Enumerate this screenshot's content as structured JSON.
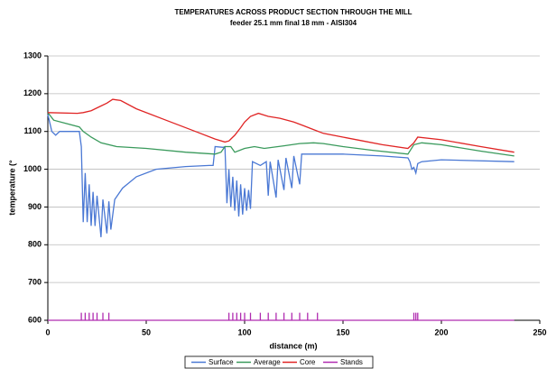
{
  "chart_data": {
    "type": "line",
    "title": "TEMPERATURES ACROSS PRODUCT SECTION THROUGH THE MILL",
    "subtitle": "feeder 25.1 mm final 18 mm - AISI304",
    "x_label": "distance (m)",
    "y_label": "temperature (°",
    "xlim": [
      0,
      250
    ],
    "xticks": [
      0,
      50,
      100,
      150,
      200,
      250
    ],
    "ylim": [
      600,
      1300
    ],
    "yticks": [
      600,
      700,
      800,
      900,
      1000,
      1100,
      1200,
      1300
    ],
    "grid": true,
    "legend": "bottom",
    "series": [
      {
        "name": "Surface",
        "color": "#4a78d4",
        "x": [
          0,
          2,
          4,
          6,
          16,
          17,
          18,
          19,
          20,
          21,
          22,
          23,
          24,
          25,
          27,
          28,
          30,
          31,
          32,
          34,
          38,
          45,
          55,
          70,
          82,
          84,
          85,
          89,
          90,
          91,
          92,
          93,
          94,
          95,
          96,
          97,
          98,
          99,
          100,
          101,
          102,
          103,
          104,
          108,
          111,
          112,
          113,
          116,
          117,
          120,
          121,
          124,
          125,
          128,
          129,
          135,
          150,
          170,
          183,
          184,
          185,
          186,
          187,
          188,
          190,
          200,
          237
        ],
        "values": [
          1145,
          1100,
          1090,
          1100,
          1100,
          1060,
          860,
          990,
          860,
          960,
          850,
          940,
          850,
          930,
          820,
          920,
          830,
          915,
          840,
          920,
          950,
          980,
          1000,
          1007,
          1010,
          1010,
          1060,
          1058,
          1060,
          910,
          1000,
          900,
          980,
          890,
          970,
          875,
          960,
          880,
          950,
          890,
          945,
          895,
          1020,
          1010,
          1020,
          930,
          1020,
          925,
          1025,
          945,
          1030,
          950,
          1035,
          960,
          1040,
          1040,
          1040,
          1035,
          1030,
          1020,
          1000,
          1005,
          990,
          1015,
          1020,
          1025,
          1020
        ]
      },
      {
        "name": "Average",
        "color": "#3a9a5c",
        "x": [
          0,
          3,
          10,
          16,
          18,
          22,
          27,
          35,
          50,
          70,
          85,
          88,
          90,
          93,
          95,
          100,
          105,
          110,
          120,
          128,
          135,
          140,
          150,
          165,
          183,
          186,
          190,
          200,
          220,
          237
        ],
        "values": [
          1150,
          1130,
          1120,
          1112,
          1100,
          1085,
          1070,
          1060,
          1055,
          1045,
          1040,
          1045,
          1060,
          1060,
          1045,
          1055,
          1060,
          1055,
          1062,
          1068,
          1070,
          1068,
          1060,
          1050,
          1040,
          1065,
          1070,
          1065,
          1048,
          1035
        ]
      },
      {
        "name": "Core",
        "color": "#e02424",
        "x": [
          0,
          15,
          18,
          22,
          26,
          30,
          33,
          37,
          45,
          60,
          75,
          85,
          90,
          92,
          95,
          98,
          100,
          103,
          107,
          112,
          118,
          125,
          130,
          135,
          140,
          150,
          160,
          170,
          183,
          186,
          188,
          200,
          220,
          237
        ],
        "values": [
          1150,
          1148,
          1150,
          1155,
          1165,
          1175,
          1185,
          1182,
          1160,
          1130,
          1100,
          1080,
          1072,
          1075,
          1090,
          1110,
          1125,
          1140,
          1148,
          1140,
          1135,
          1125,
          1115,
          1105,
          1095,
          1085,
          1075,
          1065,
          1055,
          1070,
          1085,
          1078,
          1060,
          1045
        ]
      },
      {
        "name": "Stands",
        "color": "#b02cb0",
        "x": [
          0,
          17,
          17,
          17,
          19,
          19,
          19,
          21,
          21,
          21,
          23,
          23,
          23,
          25,
          25,
          25,
          28,
          28,
          28,
          31,
          31,
          31,
          92,
          92,
          92,
          94,
          94,
          94,
          96,
          96,
          96,
          98,
          98,
          98,
          100,
          100,
          100,
          103,
          103,
          103,
          108,
          108,
          108,
          112,
          112,
          112,
          116,
          116,
          116,
          120,
          120,
          120,
          124,
          124,
          124,
          128,
          128,
          128,
          132,
          132,
          132,
          137,
          137,
          137,
          186,
          186,
          186,
          187,
          187,
          187,
          188,
          188,
          188,
          237
        ],
        "values": [
          600,
          600,
          620,
          600,
          600,
          620,
          600,
          600,
          620,
          600,
          600,
          620,
          600,
          600,
          620,
          600,
          600,
          620,
          600,
          600,
          620,
          600,
          600,
          620,
          600,
          600,
          620,
          600,
          600,
          620,
          600,
          600,
          620,
          600,
          600,
          620,
          600,
          600,
          620,
          600,
          600,
          620,
          600,
          600,
          620,
          600,
          600,
          620,
          600,
          600,
          620,
          600,
          600,
          620,
          600,
          600,
          620,
          600,
          600,
          620,
          600,
          600,
          620,
          600,
          600,
          620,
          600,
          600,
          620,
          600,
          600,
          620,
          600,
          600
        ]
      }
    ]
  }
}
